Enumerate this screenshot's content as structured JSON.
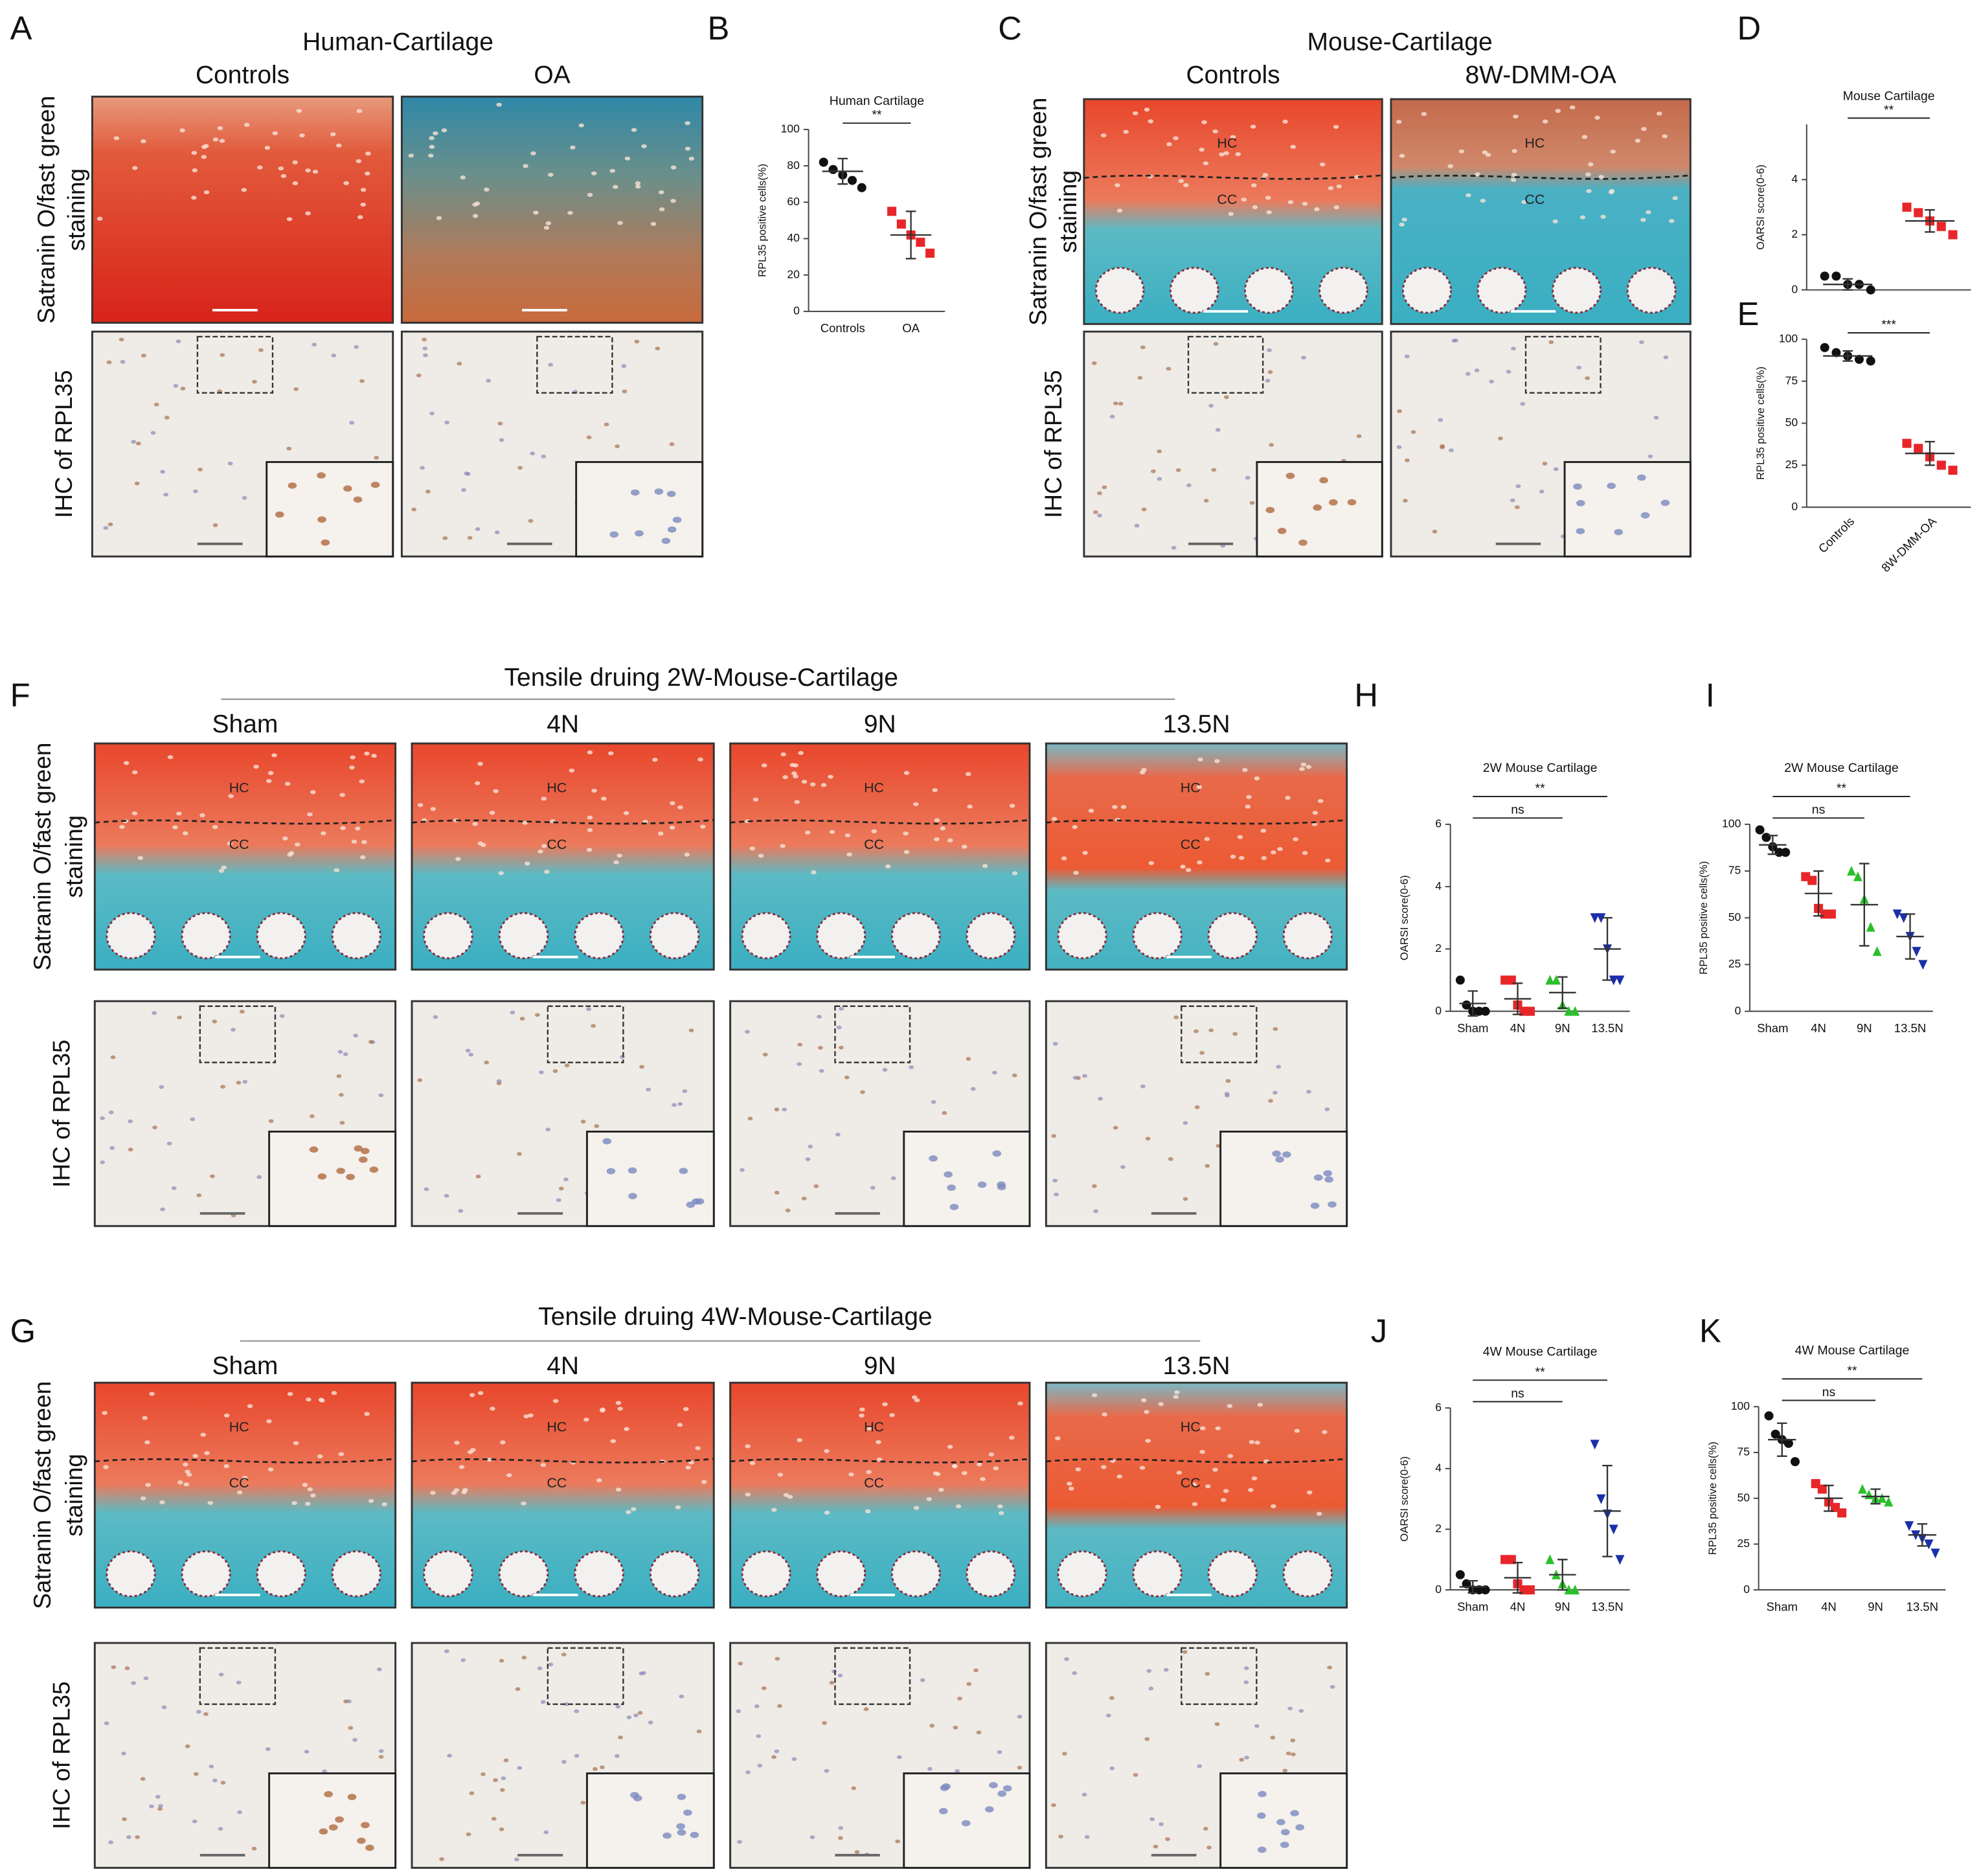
{
  "panels": {
    "A": {
      "letter": "A",
      "title": "Human-Cartilage",
      "columns": [
        "Controls",
        "OA"
      ],
      "rows": [
        [
          "Satranin O/fast green",
          "staining"
        ],
        [
          "IHC of RPL35"
        ]
      ]
    },
    "C": {
      "letter": "C",
      "title": "Mouse-Cartilage",
      "columns": [
        "Controls",
        "8W-DMM-OA"
      ],
      "rows": [
        [
          "Satranin O/fast green",
          "staining"
        ],
        [
          "IHC of RPL35"
        ]
      ],
      "zones": [
        "HC",
        "CC"
      ]
    },
    "F": {
      "letter": "F",
      "title": "Tensile druing 2W-Mouse-Cartilage",
      "columns": [
        "Sham",
        "4N",
        "9N",
        "13.5N"
      ],
      "rows": [
        [
          "Satranin O/fast green",
          "staining"
        ],
        [
          "IHC of RPL35"
        ]
      ],
      "zones": [
        "HC",
        "CC"
      ]
    },
    "G": {
      "letter": "G",
      "title": "Tensile druing 4W-Mouse-Cartilage",
      "columns": [
        "Sham",
        "4N",
        "9N",
        "13.5N"
      ],
      "rows": [
        [
          "Satranin O/fast green",
          "staining"
        ],
        [
          "IHC of RPL35"
        ]
      ],
      "zones": [
        "HC",
        "CC"
      ]
    }
  },
  "chart_data": [
    {
      "type": "dot",
      "letter": "B",
      "title": "Human Cartilage",
      "ylabel": "RPL35 positive cells(%)",
      "categories": [
        "Controls",
        "OA"
      ],
      "groups": [
        {
          "color": "#111111",
          "marker": "circle",
          "points": [
            82,
            78,
            75,
            72,
            68
          ],
          "mean": 77,
          "sd": 7
        },
        {
          "color": "#e8262a",
          "marker": "square",
          "points": [
            55,
            48,
            42,
            38,
            32
          ],
          "mean": 42,
          "sd": 13
        }
      ],
      "ylim": [
        0,
        100
      ],
      "yticks": [
        0,
        20,
        40,
        60,
        80,
        100
      ],
      "comparisons": [
        {
          "label": "**",
          "groups": [
            0,
            1
          ]
        }
      ]
    },
    {
      "type": "dot",
      "letter": "D",
      "title": "Mouse Cartilage",
      "ylabel": "OARSI score(0-6)",
      "categories": [
        null,
        null
      ],
      "groups": [
        {
          "color": "#111111",
          "marker": "circle",
          "points": [
            0.5,
            0.5,
            0.2,
            0.2,
            0
          ],
          "mean": 0.2,
          "sd": 0.2
        },
        {
          "color": "#e8262a",
          "marker": "square",
          "points": [
            3.0,
            2.8,
            2.5,
            2.3,
            2.0
          ],
          "mean": 2.5,
          "sd": 0.4
        }
      ],
      "ylim": [
        0,
        6
      ],
      "yticks": [
        0,
        2,
        4
      ],
      "comparisons": [
        {
          "label": "**",
          "groups": [
            0,
            1
          ]
        }
      ]
    },
    {
      "type": "dot",
      "letter": "E",
      "title": null,
      "ylabel": "RPL35 positive cells(%)",
      "categories": [
        "Controls",
        "8W-DMM-OA"
      ],
      "rotated_labels": true,
      "groups": [
        {
          "color": "#111111",
          "marker": "circle",
          "points": [
            95,
            92,
            90,
            88,
            87
          ],
          "mean": 90,
          "sd": 3
        },
        {
          "color": "#e8262a",
          "marker": "square",
          "points": [
            38,
            35,
            30,
            25,
            22
          ],
          "mean": 32,
          "sd": 7
        }
      ],
      "ylim": [
        0,
        100
      ],
      "yticks": [
        0,
        25,
        50,
        75,
        100
      ],
      "comparisons": [
        {
          "label": "***",
          "groups": [
            0,
            1
          ]
        }
      ]
    },
    {
      "type": "dot",
      "letter": "H",
      "title": "2W Mouse Cartilage",
      "ylabel": "OARSI score(0-6)",
      "categories": [
        "Sham",
        "4N",
        "9N",
        "13.5N"
      ],
      "groups": [
        {
          "color": "#111111",
          "marker": "circle",
          "points": [
            1,
            0.2,
            0,
            0,
            0
          ],
          "mean": 0.25,
          "sd": 0.4
        },
        {
          "color": "#e8262a",
          "marker": "square",
          "points": [
            1,
            1,
            0.2,
            0,
            0
          ],
          "mean": 0.4,
          "sd": 0.5
        },
        {
          "color": "#2bc02b",
          "marker": "triangle",
          "points": [
            1,
            1,
            0.2,
            0,
            0
          ],
          "mean": 0.6,
          "sd": 0.5
        },
        {
          "color": "#1a2fa8",
          "marker": "triangle-down",
          "points": [
            3,
            3,
            2,
            1,
            1
          ],
          "mean": 2,
          "sd": 1
        }
      ],
      "ylim": [
        0,
        6
      ],
      "yticks": [
        0,
        2,
        4,
        6
      ],
      "comparisons": [
        {
          "label": "ns",
          "groups": [
            0,
            2
          ]
        },
        {
          "label": "**",
          "groups": [
            0,
            3
          ]
        }
      ]
    },
    {
      "type": "dot",
      "letter": "I",
      "title": "2W Mouse Cartilage",
      "ylabel": "RPL35 positive cells(%)",
      "categories": [
        "Sham",
        "4N",
        "9N",
        "13.5N"
      ],
      "groups": [
        {
          "color": "#111111",
          "marker": "circle",
          "points": [
            97,
            93,
            88,
            85,
            85
          ],
          "mean": 89,
          "sd": 5
        },
        {
          "color": "#e8262a",
          "marker": "square",
          "points": [
            72,
            70,
            55,
            52,
            52
          ],
          "mean": 63,
          "sd": 12
        },
        {
          "color": "#2bc02b",
          "marker": "triangle",
          "points": [
            75,
            72,
            60,
            45,
            32
          ],
          "mean": 57,
          "sd": 22
        },
        {
          "color": "#1a2fa8",
          "marker": "triangle-down",
          "points": [
            52,
            50,
            40,
            32,
            25
          ],
          "mean": 40,
          "sd": 12
        }
      ],
      "ylim": [
        0,
        100
      ],
      "yticks": [
        0,
        25,
        50,
        75,
        100
      ],
      "comparisons": [
        {
          "label": "ns",
          "groups": [
            0,
            2
          ]
        },
        {
          "label": "**",
          "groups": [
            0,
            3
          ]
        }
      ]
    },
    {
      "type": "dot",
      "letter": "J",
      "title": "4W Mouse Cartilage",
      "ylabel": "OARSI score(0-6)",
      "categories": [
        "Sham",
        "4N",
        "9N",
        "13.5N"
      ],
      "groups": [
        {
          "color": "#111111",
          "marker": "circle",
          "points": [
            0.5,
            0.2,
            0,
            0,
            0
          ],
          "mean": 0.1,
          "sd": 0.2
        },
        {
          "color": "#e8262a",
          "marker": "square",
          "points": [
            1,
            1,
            0.2,
            0,
            0
          ],
          "mean": 0.4,
          "sd": 0.5
        },
        {
          "color": "#2bc02b",
          "marker": "triangle",
          "points": [
            1,
            0.5,
            0.2,
            0,
            0
          ],
          "mean": 0.5,
          "sd": 0.5
        },
        {
          "color": "#1a2fa8",
          "marker": "triangle-down",
          "points": [
            4.8,
            3,
            2.5,
            2,
            1
          ],
          "mean": 2.6,
          "sd": 1.5
        }
      ],
      "ylim": [
        0,
        6
      ],
      "yticks": [
        0,
        2,
        4,
        6
      ],
      "comparisons": [
        {
          "label": "ns",
          "groups": [
            0,
            2
          ]
        },
        {
          "label": "**",
          "groups": [
            0,
            3
          ]
        }
      ]
    },
    {
      "type": "dot",
      "letter": "K",
      "title": "4W Mouse Cartilage",
      "ylabel": "RPL35 positive cells(%)",
      "categories": [
        "Sham",
        "4N",
        "9N",
        "13.5N"
      ],
      "groups": [
        {
          "color": "#111111",
          "marker": "circle",
          "points": [
            95,
            85,
            82,
            80,
            70
          ],
          "mean": 82,
          "sd": 9
        },
        {
          "color": "#e8262a",
          "marker": "square",
          "points": [
            58,
            55,
            48,
            45,
            42
          ],
          "mean": 50,
          "sd": 7
        },
        {
          "color": "#2bc02b",
          "marker": "triangle",
          "points": [
            55,
            52,
            50,
            50,
            48
          ],
          "mean": 51,
          "sd": 4
        },
        {
          "color": "#1a2fa8",
          "marker": "triangle-down",
          "points": [
            35,
            30,
            28,
            25,
            20
          ],
          "mean": 30,
          "sd": 6
        }
      ],
      "ylim": [
        0,
        100
      ],
      "yticks": [
        0,
        25,
        50,
        75,
        100
      ],
      "comparisons": [
        {
          "label": "ns",
          "groups": [
            0,
            2
          ]
        },
        {
          "label": "**",
          "groups": [
            0,
            3
          ]
        }
      ]
    }
  ]
}
